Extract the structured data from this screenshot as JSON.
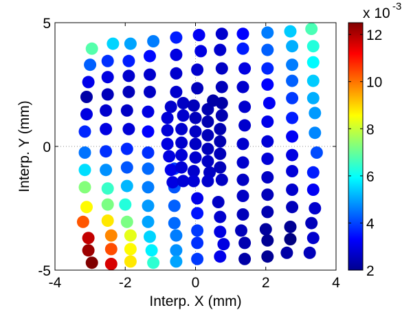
{
  "chart_data": {
    "type": "scatter",
    "xlabel": "Interp. X (mm)",
    "ylabel": "Interp. Y (mm)",
    "xlim": [
      -4,
      4
    ],
    "ylim": [
      -5,
      5
    ],
    "xticks": [
      "-4",
      "-2",
      "0",
      "2",
      "4"
    ],
    "yticks": [
      "-5",
      "0",
      "5"
    ],
    "grid": "dotted center lines at x=0 and y=0",
    "colorbar": {
      "colormap": "jet",
      "range": [
        2,
        12.5
      ],
      "ticks": [
        "2",
        "4",
        "6",
        "8",
        "10",
        "12"
      ],
      "multiplier_label": "x 10",
      "multiplier_exponent": "-3"
    },
    "points": [
      {
        "x": -2.95,
        "y": 3.95,
        "v": 6.8
      },
      {
        "x": -3.0,
        "y": 3.3,
        "v": 4.3
      },
      {
        "x": -3.05,
        "y": 2.6,
        "v": 3.1
      },
      {
        "x": -3.1,
        "y": 2.0,
        "v": 2.4
      },
      {
        "x": -3.1,
        "y": 1.3,
        "v": 3.0
      },
      {
        "x": -3.15,
        "y": 0.6,
        "v": 3.7
      },
      {
        "x": -3.15,
        "y": -0.25,
        "v": 4.5
      },
      {
        "x": -3.15,
        "y": -0.95,
        "v": 5.6
      },
      {
        "x": -3.15,
        "y": -1.65,
        "v": 7.3
      },
      {
        "x": -3.1,
        "y": -2.45,
        "v": 8.6
      },
      {
        "x": -3.2,
        "y": -3.05,
        "v": 10.3
      },
      {
        "x": -3.05,
        "y": -3.7,
        "v": 11.8
      },
      {
        "x": -3.05,
        "y": -4.2,
        "v": 12.2
      },
      {
        "x": -2.95,
        "y": -4.7,
        "v": 12.6
      },
      {
        "x": -2.35,
        "y": 4.15,
        "v": 5.5
      },
      {
        "x": -2.5,
        "y": 3.45,
        "v": 3.8
      },
      {
        "x": -2.5,
        "y": 2.8,
        "v": 3.0
      },
      {
        "x": -2.5,
        "y": 2.1,
        "v": 2.6
      },
      {
        "x": -2.55,
        "y": 1.45,
        "v": 2.8
      },
      {
        "x": -2.55,
        "y": 0.7,
        "v": 3.0
      },
      {
        "x": -2.55,
        "y": -0.2,
        "v": 3.8
      },
      {
        "x": -2.55,
        "y": -0.95,
        "v": 4.8
      },
      {
        "x": -2.5,
        "y": -1.7,
        "v": 6.5
      },
      {
        "x": -2.5,
        "y": -2.35,
        "v": 7.2
      },
      {
        "x": -2.5,
        "y": -3.0,
        "v": 8.8
      },
      {
        "x": -2.4,
        "y": -3.6,
        "v": 9.8
      },
      {
        "x": -2.4,
        "y": -4.15,
        "v": 10.4
      },
      {
        "x": -2.4,
        "y": -4.75,
        "v": 11.6
      },
      {
        "x": -1.85,
        "y": 4.15,
        "v": 5.0
      },
      {
        "x": -1.9,
        "y": 3.45,
        "v": 3.6
      },
      {
        "x": -1.9,
        "y": 2.85,
        "v": 2.8
      },
      {
        "x": -1.9,
        "y": 2.2,
        "v": 2.6
      },
      {
        "x": -1.95,
        "y": 1.45,
        "v": 2.7
      },
      {
        "x": -1.9,
        "y": 0.7,
        "v": 2.9
      },
      {
        "x": -1.95,
        "y": -0.1,
        "v": 3.7
      },
      {
        "x": -1.95,
        "y": -0.85,
        "v": 4.2
      },
      {
        "x": -1.95,
        "y": -1.6,
        "v": 5.2
      },
      {
        "x": -2.0,
        "y": -2.35,
        "v": 6.3
      },
      {
        "x": -1.95,
        "y": -3.05,
        "v": 7.2
      },
      {
        "x": -1.85,
        "y": -3.6,
        "v": 8.3
      },
      {
        "x": -1.85,
        "y": -4.15,
        "v": 8.6
      },
      {
        "x": -1.85,
        "y": -4.65,
        "v": 8.8
      },
      {
        "x": -1.2,
        "y": 4.25,
        "v": 4.6
      },
      {
        "x": -1.3,
        "y": 3.65,
        "v": 3.4
      },
      {
        "x": -1.3,
        "y": 2.9,
        "v": 2.8
      },
      {
        "x": -1.3,
        "y": 2.2,
        "v": 2.7
      },
      {
        "x": -1.35,
        "y": 1.4,
        "v": 3.0
      },
      {
        "x": -1.35,
        "y": 0.6,
        "v": 3.3
      },
      {
        "x": -1.35,
        "y": -0.25,
        "v": 3.8
      },
      {
        "x": -1.35,
        "y": -0.9,
        "v": 4.4
      },
      {
        "x": -1.35,
        "y": -1.65,
        "v": 4.6
      },
      {
        "x": -1.35,
        "y": -2.4,
        "v": 4.9
      },
      {
        "x": -1.35,
        "y": -3.05,
        "v": 5.0
      },
      {
        "x": -1.3,
        "y": -3.65,
        "v": 5.5
      },
      {
        "x": -1.25,
        "y": -4.2,
        "v": 5.8
      },
      {
        "x": -1.2,
        "y": -4.7,
        "v": 6.4
      },
      {
        "x": -0.55,
        "y": 4.4,
        "v": 3.6
      },
      {
        "x": -0.55,
        "y": 3.7,
        "v": 3.0
      },
      {
        "x": -0.55,
        "y": 2.95,
        "v": 2.8
      },
      {
        "x": -0.55,
        "y": 2.2,
        "v": 2.8
      },
      {
        "x": -0.6,
        "y": -0.9,
        "v": 3.9
      },
      {
        "x": -0.6,
        "y": -1.65,
        "v": 4.2
      },
      {
        "x": -0.6,
        "y": -2.4,
        "v": 4.3
      },
      {
        "x": -0.6,
        "y": -3.1,
        "v": 4.4
      },
      {
        "x": -0.55,
        "y": -3.6,
        "v": 4.6
      },
      {
        "x": -0.55,
        "y": -4.2,
        "v": 4.8
      },
      {
        "x": -0.55,
        "y": -4.65,
        "v": 5.0
      },
      {
        "x": 0.1,
        "y": 4.5,
        "v": 3.2
      },
      {
        "x": 0.15,
        "y": 3.85,
        "v": 3.0
      },
      {
        "x": 0.05,
        "y": 3.1,
        "v": 2.8
      },
      {
        "x": 0.05,
        "y": 2.35,
        "v": 2.6
      },
      {
        "x": 0.05,
        "y": -2.1,
        "v": 3.1
      },
      {
        "x": 0.05,
        "y": -2.7,
        "v": 3.5
      },
      {
        "x": 0.05,
        "y": -3.4,
        "v": 3.9
      },
      {
        "x": 0.05,
        "y": -3.9,
        "v": 3.8
      },
      {
        "x": 0.05,
        "y": -4.55,
        "v": 3.9
      },
      {
        "x": 0.75,
        "y": 4.55,
        "v": 2.8
      },
      {
        "x": 0.7,
        "y": 3.9,
        "v": 2.8
      },
      {
        "x": 0.75,
        "y": 3.15,
        "v": 2.7
      },
      {
        "x": 0.75,
        "y": 2.4,
        "v": 2.6
      },
      {
        "x": 0.65,
        "y": -2.25,
        "v": 2.7
      },
      {
        "x": 0.7,
        "y": -2.85,
        "v": 2.8
      },
      {
        "x": 0.7,
        "y": -3.45,
        "v": 3.0
      },
      {
        "x": 0.8,
        "y": -3.95,
        "v": 3.0
      },
      {
        "x": 0.7,
        "y": -4.45,
        "v": 3.1
      },
      {
        "x": 1.35,
        "y": 4.55,
        "v": 3.3
      },
      {
        "x": 1.35,
        "y": 3.95,
        "v": 3.6
      },
      {
        "x": 1.4,
        "y": 3.15,
        "v": 3.0
      },
      {
        "x": 1.35,
        "y": 2.4,
        "v": 2.8
      },
      {
        "x": 1.4,
        "y": 1.6,
        "v": 2.8
      },
      {
        "x": 1.4,
        "y": 0.85,
        "v": 2.8
      },
      {
        "x": 1.35,
        "y": 0.1,
        "v": 2.8
      },
      {
        "x": 1.35,
        "y": -0.65,
        "v": 2.8
      },
      {
        "x": 1.35,
        "y": -1.35,
        "v": 2.7
      },
      {
        "x": 1.35,
        "y": -2.0,
        "v": 2.7
      },
      {
        "x": 1.35,
        "y": -2.75,
        "v": 2.6
      },
      {
        "x": 1.3,
        "y": -3.4,
        "v": 2.6
      },
      {
        "x": 1.4,
        "y": -3.9,
        "v": 2.5
      },
      {
        "x": 1.4,
        "y": -4.55,
        "v": 2.4
      },
      {
        "x": 2.05,
        "y": 4.6,
        "v": 4.6
      },
      {
        "x": 2.05,
        "y": 3.9,
        "v": 4.3
      },
      {
        "x": 2.05,
        "y": 3.15,
        "v": 3.7
      },
      {
        "x": 2.05,
        "y": 2.5,
        "v": 3.3
      },
      {
        "x": 2.1,
        "y": 1.75,
        "v": 3.2
      },
      {
        "x": 2.05,
        "y": 1.0,
        "v": 3.1
      },
      {
        "x": 2.05,
        "y": 0.2,
        "v": 2.9
      },
      {
        "x": 2.05,
        "y": -0.5,
        "v": 2.9
      },
      {
        "x": 2.05,
        "y": -1.25,
        "v": 2.7
      },
      {
        "x": 2.05,
        "y": -1.95,
        "v": 2.6
      },
      {
        "x": 2.05,
        "y": -2.65,
        "v": 2.5
      },
      {
        "x": 2.0,
        "y": -3.35,
        "v": 2.3
      },
      {
        "x": 2.05,
        "y": -3.8,
        "v": 2.2
      },
      {
        "x": 2.05,
        "y": -4.45,
        "v": 2.2
      },
      {
        "x": 2.7,
        "y": 4.65,
        "v": 5.4
      },
      {
        "x": 2.75,
        "y": 4.05,
        "v": 5.1
      },
      {
        "x": 2.75,
        "y": 3.3,
        "v": 4.6
      },
      {
        "x": 2.75,
        "y": 2.65,
        "v": 4.3
      },
      {
        "x": 2.75,
        "y": 1.95,
        "v": 3.9
      },
      {
        "x": 2.75,
        "y": 1.15,
        "v": 3.6
      },
      {
        "x": 2.75,
        "y": 0.4,
        "v": 3.2
      },
      {
        "x": 2.75,
        "y": -0.35,
        "v": 3.0
      },
      {
        "x": 2.75,
        "y": -1.0,
        "v": 2.9
      },
      {
        "x": 2.75,
        "y": -1.75,
        "v": 2.8
      },
      {
        "x": 2.75,
        "y": -2.45,
        "v": 2.6
      },
      {
        "x": 2.7,
        "y": -3.25,
        "v": 2.2
      },
      {
        "x": 2.7,
        "y": -3.75,
        "v": 2.0
      },
      {
        "x": 2.6,
        "y": -4.3,
        "v": 2.4
      },
      {
        "x": 3.3,
        "y": 4.75,
        "v": 6.7
      },
      {
        "x": 3.35,
        "y": 4.05,
        "v": 6.3
      },
      {
        "x": 3.35,
        "y": 3.4,
        "v": 5.9
      },
      {
        "x": 3.35,
        "y": 2.65,
        "v": 5.4
      },
      {
        "x": 3.35,
        "y": 1.95,
        "v": 5.1
      },
      {
        "x": 3.4,
        "y": 1.35,
        "v": 4.9
      },
      {
        "x": 3.4,
        "y": 0.55,
        "v": 4.7
      },
      {
        "x": 3.45,
        "y": -0.25,
        "v": 4.1
      },
      {
        "x": 3.35,
        "y": -1.05,
        "v": 3.6
      },
      {
        "x": 3.35,
        "y": -1.75,
        "v": 3.2
      },
      {
        "x": 3.4,
        "y": -2.5,
        "v": 2.8
      },
      {
        "x": 3.3,
        "y": -3.1,
        "v": 2.6
      },
      {
        "x": 3.35,
        "y": -3.7,
        "v": 2.8
      },
      {
        "x": 3.25,
        "y": -4.3,
        "v": 2.6
      },
      {
        "x": -0.7,
        "y": 1.6,
        "v": 2.8
      },
      {
        "x": -0.8,
        "y": 1.15,
        "v": 2.9
      },
      {
        "x": -0.8,
        "y": 0.65,
        "v": 2.9
      },
      {
        "x": -0.8,
        "y": 0.1,
        "v": 3.0
      },
      {
        "x": -0.75,
        "y": -0.4,
        "v": 3.0
      },
      {
        "x": -0.7,
        "y": -0.95,
        "v": 3.1
      },
      {
        "x": -0.65,
        "y": -1.45,
        "v": 3.0
      },
      {
        "x": -0.35,
        "y": 1.75,
        "v": 2.7
      },
      {
        "x": -0.35,
        "y": 1.25,
        "v": 2.8
      },
      {
        "x": -0.4,
        "y": 0.7,
        "v": 2.8
      },
      {
        "x": -0.4,
        "y": 0.15,
        "v": 2.8
      },
      {
        "x": -0.4,
        "y": -0.35,
        "v": 2.9
      },
      {
        "x": -0.4,
        "y": -0.85,
        "v": 2.9
      },
      {
        "x": -0.35,
        "y": -1.4,
        "v": 2.9
      },
      {
        "x": -0.05,
        "y": 1.65,
        "v": 2.6
      },
      {
        "x": 0.0,
        "y": 1.15,
        "v": 2.6
      },
      {
        "x": 0.0,
        "y": 0.6,
        "v": 2.7
      },
      {
        "x": 0.0,
        "y": 0.1,
        "v": 2.7
      },
      {
        "x": 0.0,
        "y": -0.45,
        "v": 2.8
      },
      {
        "x": -0.05,
        "y": -1.0,
        "v": 2.8
      },
      {
        "x": -0.05,
        "y": -1.4,
        "v": 2.9
      },
      {
        "x": 0.35,
        "y": 1.5,
        "v": 2.5
      },
      {
        "x": 0.35,
        "y": 1.0,
        "v": 2.5
      },
      {
        "x": 0.35,
        "y": 0.45,
        "v": 2.6
      },
      {
        "x": 0.35,
        "y": -0.1,
        "v": 2.6
      },
      {
        "x": 0.35,
        "y": -0.6,
        "v": 2.7
      },
      {
        "x": 0.4,
        "y": -1.05,
        "v": 2.7
      },
      {
        "x": 0.35,
        "y": -1.4,
        "v": 2.8
      },
      {
        "x": 0.5,
        "y": 1.85,
        "v": 2.4
      },
      {
        "x": 0.75,
        "y": 1.75,
        "v": 2.4
      },
      {
        "x": 0.75,
        "y": 1.25,
        "v": 2.5
      },
      {
        "x": 0.7,
        "y": 0.7,
        "v": 2.5
      },
      {
        "x": 0.7,
        "y": 0.2,
        "v": 2.5
      },
      {
        "x": 0.7,
        "y": -0.3,
        "v": 2.6
      },
      {
        "x": 0.7,
        "y": -0.85,
        "v": 2.6
      },
      {
        "x": 0.75,
        "y": -1.35,
        "v": 2.7
      }
    ]
  }
}
